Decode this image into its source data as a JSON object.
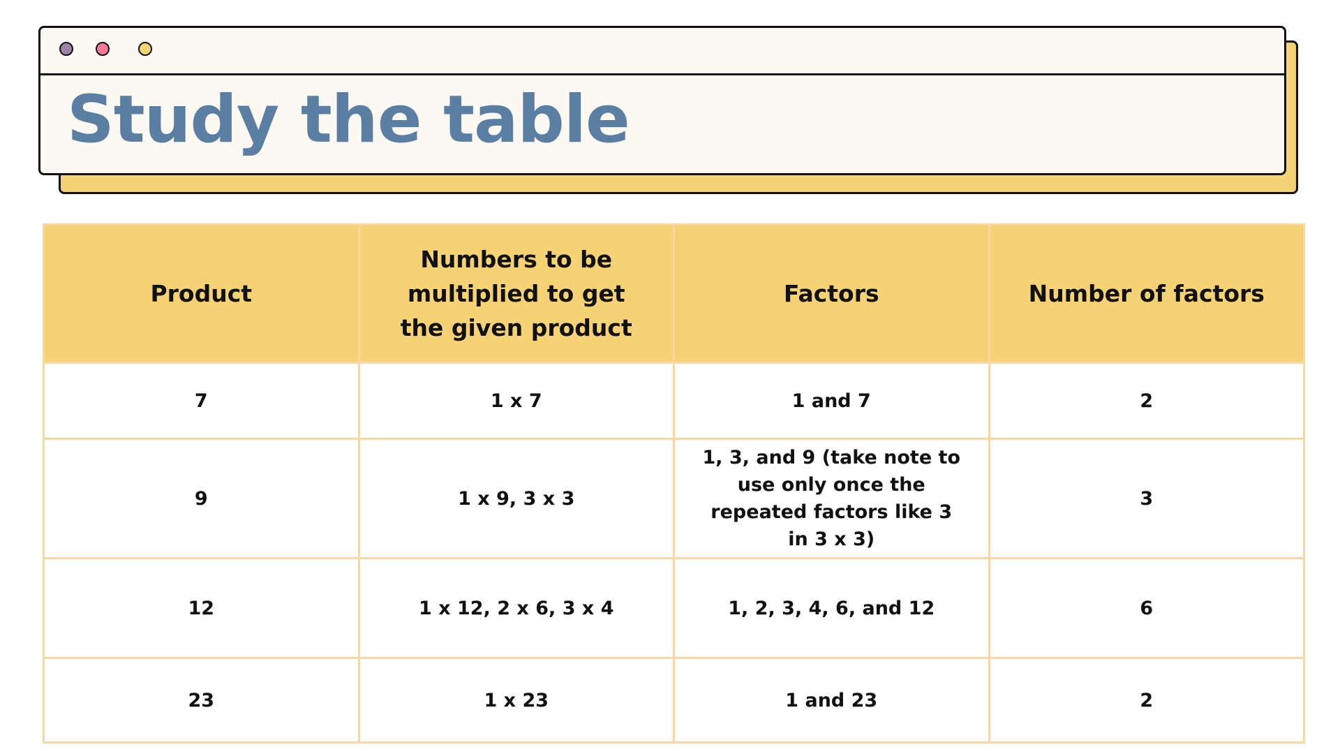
{
  "colors": {
    "accent_yellow": "#f5d273",
    "title_blue": "#5b7ea3",
    "window_bg": "#fcf8f2",
    "cell_border": "#fad79e",
    "dot_purple": "#9b85a6",
    "dot_pink": "#f07b95",
    "dot_yellow": "#f5d273"
  },
  "window": {
    "title": "Study the table"
  },
  "table": {
    "headers": [
      "Product",
      "Numbers to be multiplied to get the given product",
      "Factors",
      "Number of factors"
    ],
    "rows": [
      [
        "7",
        "1 x 7",
        "1 and 7",
        "2"
      ],
      [
        "9",
        "1 x 9, 3 x 3",
        "1, 3, and 9 (take note to use only once the repeated factors like 3 in 3 x 3)",
        "3"
      ],
      [
        "12",
        "1 x 12, 2 x 6, 3 x 4",
        "1, 2, 3, 4, 6, and 12",
        "6"
      ],
      [
        "23",
        "1 x 23",
        "1 and 23",
        "2"
      ]
    ]
  }
}
